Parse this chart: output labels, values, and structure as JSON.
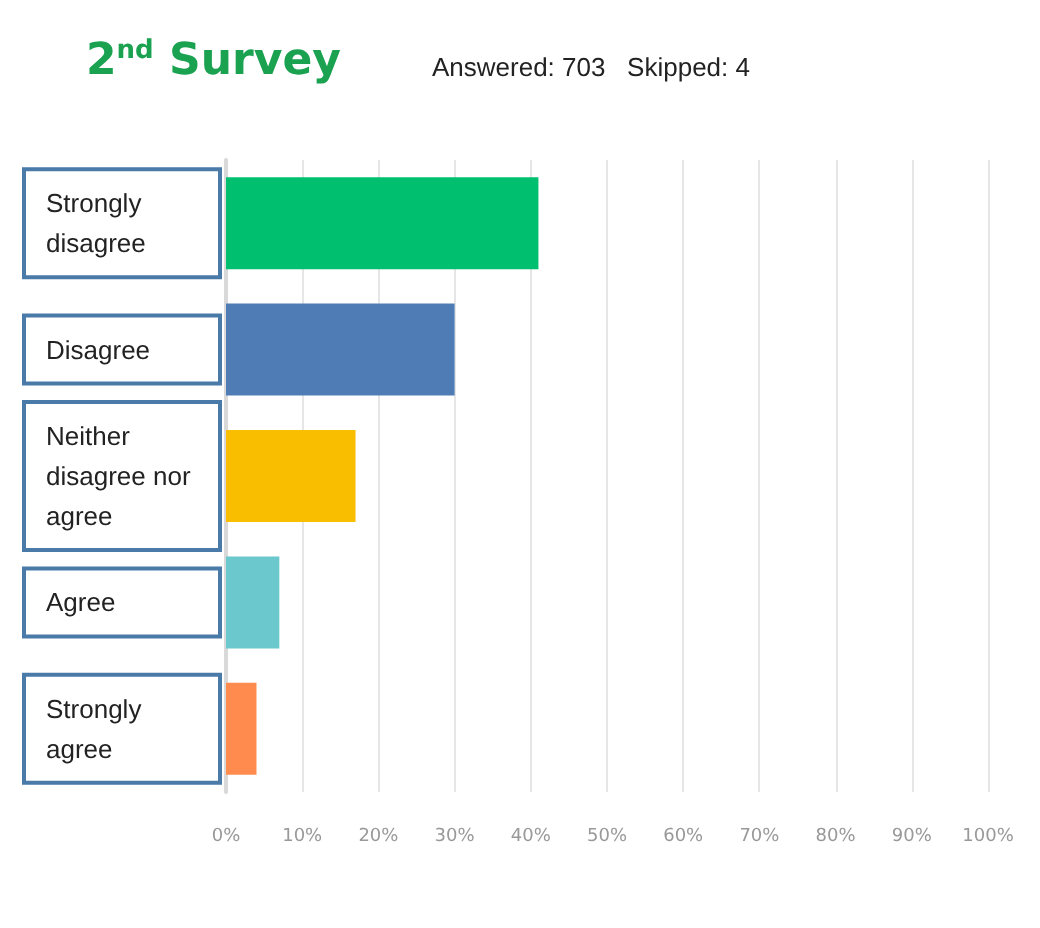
{
  "chart_data": {
    "type": "bar",
    "orientation": "horizontal",
    "title": "2$^{nd}$ Survey",
    "subtitle": "Answered: 703   Skipped: 4",
    "categories": [
      "Strongly disagree",
      "Disagree",
      "Neither disagree nor agree",
      "Agree",
      "Strongly agree"
    ],
    "values": [
      41,
      30,
      17,
      7,
      4
    ],
    "colors": [
      "#00bf6f",
      "#507cb6",
      "#f9be00",
      "#6bc8cd",
      "#ff8b4f"
    ],
    "xlim": [
      0,
      100
    ],
    "xticks": [
      {
        "value": 0,
        "label": "0%"
      },
      {
        "value": 10,
        "label": "10%"
      },
      {
        "value": 20,
        "label": "20%"
      },
      {
        "value": 30,
        "label": "30%"
      },
      {
        "value": 40,
        "label": "40%"
      },
      {
        "value": 50,
        "label": "50%"
      },
      {
        "value": 60,
        "label": "60%"
      },
      {
        "value": 70,
        "label": "70%"
      },
      {
        "value": 80,
        "label": "80%"
      },
      {
        "value": 90,
        "label": "90%"
      },
      {
        "value": 100,
        "label": "100%"
      }
    ],
    "grid": "x"
  }
}
